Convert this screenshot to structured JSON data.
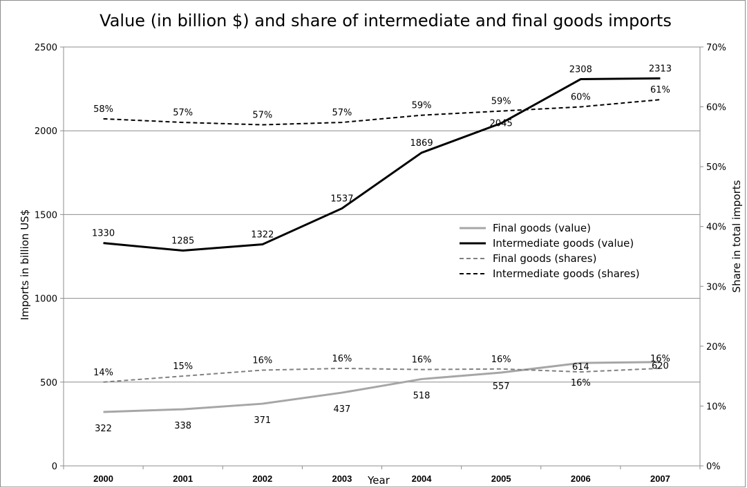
{
  "chart_data": {
    "type": "line",
    "title": "Value (in billion $) and share of intermediate and final goods imports",
    "xlabel": "Year",
    "ylabel": "Imports in billion US$",
    "y2label": "Share in total imports",
    "categories": [
      "2000",
      "2001",
      "2002",
      "2003",
      "2004",
      "2005",
      "2006",
      "2007"
    ],
    "ylim": [
      0,
      2500
    ],
    "yticks": [
      "0",
      "500",
      "1000",
      "1500",
      "2000",
      "2500"
    ],
    "y2lim": [
      0,
      70
    ],
    "y2ticks": [
      "0%",
      "10%",
      "20%",
      "30%",
      "40%",
      "50%",
      "60%",
      "70%"
    ],
    "grid": true,
    "legend_position": "center-right",
    "series": [
      {
        "name": "Final goods (value)",
        "axis": "left",
        "style": "solid",
        "color": "#a6a6a6",
        "values": [
          322,
          338,
          371,
          437,
          518,
          557,
          614,
          620
        ],
        "labels": [
          "322",
          "338",
          "371",
          "437",
          "518",
          "557",
          "614",
          "620"
        ]
      },
      {
        "name": "Intermediate goods (value)",
        "axis": "left",
        "style": "solid",
        "color": "#000000",
        "values": [
          1330,
          1285,
          1322,
          1537,
          1869,
          2045,
          2308,
          2313
        ],
        "labels": [
          "1330",
          "1285",
          "1322",
          "1537",
          "1869",
          "2045",
          "2308",
          "2313"
        ]
      },
      {
        "name": "Final goods (shares)",
        "axis": "right",
        "style": "dashed",
        "color": "#808080",
        "values": [
          14,
          15,
          16,
          16.3,
          16.1,
          16.2,
          15.7,
          16.3
        ],
        "labels": [
          "14%",
          "15%",
          "16%",
          "16%",
          "16%",
          "16%",
          "16%",
          "16%"
        ]
      },
      {
        "name": "Intermediate goods (shares)",
        "axis": "right",
        "style": "dashed",
        "color": "#000000",
        "values": [
          58,
          57.4,
          57,
          57.4,
          58.6,
          59.3,
          60,
          61.2
        ],
        "labels": [
          "58%",
          "57%",
          "57%",
          "57%",
          "59%",
          "59%",
          "60%",
          "61%"
        ]
      }
    ]
  }
}
